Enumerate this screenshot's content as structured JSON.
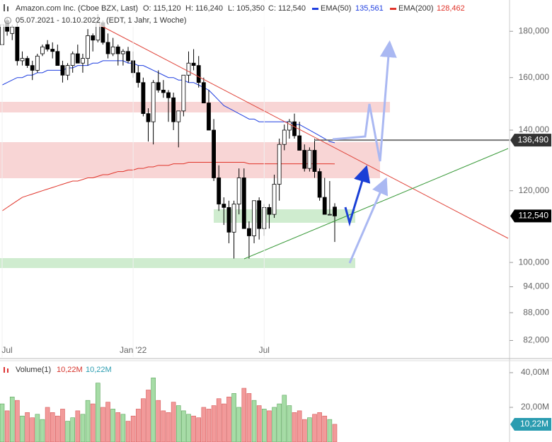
{
  "chart_data": {
    "type": "candlestick",
    "title": "Amazon.com Inc. (Cboe BZX, Last)",
    "info": [
      "O: 115,120",
      "H: 116,240",
      "L: 105,350",
      "C: 112,540"
    ],
    "subtitle": "05.07.2021 - 10.10.2022",
    "subtitle_note": "(EDT, 1 Jahr, 1 Woche)",
    "log_scale": true,
    "up_color": "#ffffff",
    "down_color": "#000000",
    "categories": [
      "Jul",
      null,
      null,
      null,
      null,
      null,
      null,
      null,
      null,
      null,
      null,
      null,
      null,
      null,
      null,
      null,
      null,
      null,
      null,
      null,
      null,
      null,
      null,
      null,
      null,
      null,
      "Jan '22",
      null,
      null,
      null,
      null,
      null,
      null,
      null,
      null,
      null,
      null,
      null,
      null,
      null,
      null,
      null,
      null,
      null,
      null,
      null,
      null,
      null,
      null,
      null,
      null,
      null,
      "Jul",
      null,
      null,
      null,
      null,
      null,
      null,
      null,
      null,
      null,
      null,
      null,
      null,
      null,
      null
    ],
    "open": [
      174,
      185,
      179,
      182,
      167,
      168,
      165,
      163,
      170,
      174,
      172,
      171,
      165,
      161,
      165,
      170,
      166,
      168,
      178,
      176,
      184,
      175,
      170,
      173,
      170,
      171,
      167,
      162,
      158,
      146,
      143,
      158,
      155,
      154,
      152,
      143,
      147,
      161,
      166,
      165,
      158,
      150,
      140,
      124,
      116,
      115,
      108,
      116,
      124,
      109,
      107,
      117,
      109,
      115,
      113,
      122,
      135,
      140,
      143,
      138,
      133,
      127,
      133,
      126,
      118,
      113,
      115.12
    ],
    "high": [
      186,
      186,
      183,
      184,
      171,
      169,
      167,
      170,
      174,
      176,
      175,
      174,
      167,
      166,
      171,
      174,
      170,
      181,
      179,
      188,
      185,
      179,
      177,
      174,
      172,
      173,
      171,
      165,
      160,
      148,
      159,
      163,
      159,
      155,
      154,
      147,
      160,
      171,
      172,
      169,
      160,
      155,
      144,
      128,
      118,
      117,
      117,
      127,
      127,
      111,
      117,
      118,
      116,
      116,
      125,
      137,
      142,
      144,
      146,
      143,
      135,
      134,
      137,
      127,
      124,
      123,
      116.24
    ],
    "low": [
      173,
      178,
      176,
      165,
      165,
      164,
      159,
      162,
      169,
      171,
      168,
      165,
      158,
      159,
      162,
      166,
      162,
      165,
      171,
      175,
      174,
      168,
      169,
      165,
      165,
      166,
      160,
      156,
      145,
      136,
      135,
      154,
      152,
      143,
      140,
      134,
      145,
      158,
      163,
      156,
      150,
      140,
      123,
      114,
      110,
      105,
      101,
      113,
      109,
      101,
      105,
      106,
      107,
      109,
      112,
      117,
      133,
      137,
      137,
      133,
      126,
      126,
      124,
      117,
      113,
      113,
      105.35
    ],
    "close": [
      183,
      180,
      182,
      167,
      168,
      165,
      163,
      169,
      173,
      172,
      171,
      165,
      161,
      165,
      170,
      166,
      168,
      178,
      176,
      184,
      175,
      170,
      173,
      170,
      171,
      167,
      162,
      158,
      146,
      143,
      158,
      155,
      154,
      152,
      143,
      147,
      161,
      166,
      165,
      158,
      150,
      140,
      124,
      116,
      115,
      108,
      116,
      124,
      109,
      107,
      117,
      109,
      115,
      113,
      122,
      135,
      140,
      143,
      138,
      133,
      127,
      133,
      126,
      118,
      113,
      113,
      112.54
    ],
    "overlays": [
      {
        "name": "EMA(50)",
        "color": "#1f3fe0",
        "last_label": "135,561",
        "values": [
          157,
          158,
          159,
          160,
          160,
          161,
          161,
          162,
          162,
          163,
          163,
          163,
          163,
          164,
          164,
          165,
          165,
          165,
          166,
          166,
          167,
          167,
          167,
          167,
          167,
          166,
          166,
          165,
          165,
          164,
          163,
          162,
          161,
          160,
          160,
          159,
          159,
          158,
          158,
          157,
          156,
          155,
          153,
          151,
          149,
          148,
          147,
          146,
          145,
          144,
          144,
          143,
          143,
          143,
          143,
          143,
          143,
          143,
          142,
          142,
          141,
          140,
          139,
          138,
          137,
          136,
          135.561
        ]
      },
      {
        "name": "EMA(200)",
        "color": "#e0342a",
        "last_label": "128,462",
        "values": [
          114,
          115,
          116,
          117,
          118,
          118.5,
          119,
          119.5,
          120,
          120.5,
          121,
          121.5,
          122,
          122.5,
          123,
          123,
          123.5,
          124,
          124,
          124.5,
          125,
          125,
          125.5,
          126,
          126,
          126.5,
          126.5,
          127,
          127,
          127.5,
          127.5,
          128,
          128,
          128,
          128.5,
          128.5,
          128.5,
          129,
          129,
          129,
          129,
          129,
          129,
          129,
          129,
          129,
          129,
          129,
          129,
          128.5,
          128.5,
          128.5,
          128.5,
          128.5,
          128.5,
          128.5,
          128.5,
          128.5,
          128.5,
          128.5,
          128.5,
          128.5,
          128.5,
          128.5,
          128.5,
          128.5,
          128.462
        ]
      }
    ],
    "ylim": [
      78.6,
      194.9
    ],
    "yticks": [
      {
        "value": 180,
        "label": "180,000"
      },
      {
        "value": 160,
        "label": "160,000"
      },
      {
        "value": 140,
        "label": "140,000"
      },
      {
        "value": 120,
        "label": "120,000"
      },
      {
        "value": 100,
        "label": "100,000"
      },
      {
        "value": 94,
        "label": "94,000"
      },
      {
        "value": 88,
        "label": "88,000"
      },
      {
        "value": 82,
        "label": "82,000"
      }
    ],
    "hline": {
      "value": 136.49,
      "label": "136,490"
    },
    "last_price": {
      "value": 112.54,
      "label": "112,540"
    },
    "volume": {
      "name": "Volume(1)",
      "up_color": "#a6dca6",
      "down_color": "#f29a9a",
      "value_label": "10,22M",
      "ylim": [
        0,
        46.1
      ],
      "yticks": [
        {
          "value": 20,
          "label": "20,00M"
        },
        {
          "value": 40,
          "label": "40,00M"
        }
      ],
      "values": [
        22,
        18,
        26,
        24,
        15,
        17,
        14,
        16,
        13,
        20,
        17,
        15,
        19,
        12,
        14,
        18,
        16,
        24,
        22,
        34,
        20,
        23,
        19,
        17,
        16,
        12,
        15,
        19,
        25,
        30,
        37,
        24,
        18,
        17,
        23,
        21,
        18,
        16,
        15,
        14,
        20,
        19,
        21,
        25,
        22,
        26,
        28,
        20,
        31,
        28,
        24,
        21,
        19,
        18,
        20,
        22,
        27,
        21,
        17,
        18,
        13,
        14,
        16,
        17,
        15,
        13,
        10.22
      ]
    }
  }
}
